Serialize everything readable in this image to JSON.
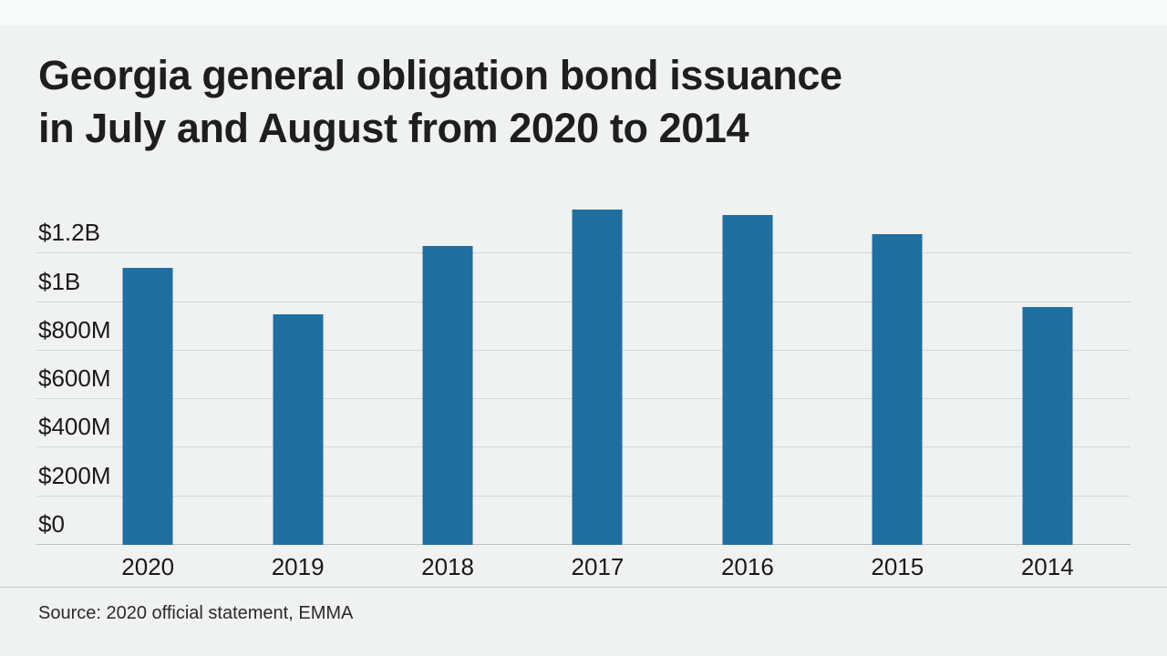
{
  "page": {
    "background": "#f0f1f1"
  },
  "header": {
    "title": "Georgia general obligation bond issuance\nin July and August from 2020 to 2014"
  },
  "footer": {
    "source": "Source: 2020 official statement, EMMA"
  },
  "chart_data": {
    "type": "bar",
    "title": "Georgia general obligation bond issuance in July and August from 2020 to 2014",
    "categories": [
      "2020",
      "2019",
      "2018",
      "2017",
      "2016",
      "2015",
      "2014"
    ],
    "values": [
      1140,
      950,
      1230,
      1380,
      1360,
      1280,
      980
    ],
    "values_unit": "millions of USD",
    "xlabel": "",
    "ylabel": "",
    "ylim": [
      0,
      1400
    ],
    "yticks": [
      {
        "label": "$1.2B",
        "value": 1200
      },
      {
        "label": "$1B",
        "value": 1000
      },
      {
        "label": "$800M",
        "value": 800
      },
      {
        "label": "$600M",
        "value": 600
      },
      {
        "label": "$400M",
        "value": 400
      },
      {
        "label": "$200M",
        "value": 200
      },
      {
        "label": "$0",
        "value": 0
      }
    ],
    "bar_color": "#1f6fa0",
    "grid": true,
    "legend": false,
    "source": "Source: 2020 official statement, EMMA"
  }
}
